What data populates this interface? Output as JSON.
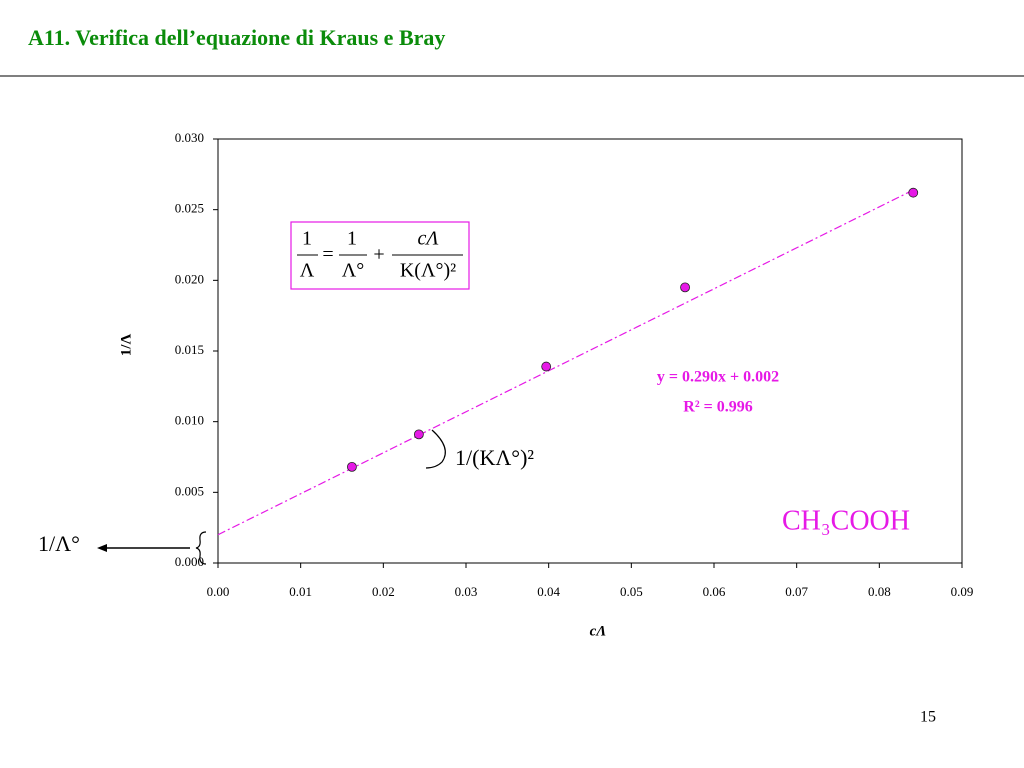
{
  "slide": {
    "title": "A11. Verifica dell’equazione di Kraus e Bray",
    "page_number": 15
  },
  "chart_data": {
    "type": "scatter",
    "x_label": "cΛ",
    "y_label": "1/Λ",
    "x": [
      0.0162,
      0.0243,
      0.0397,
      0.0565,
      0.0841
    ],
    "values": [
      0.0068,
      0.0091,
      0.0139,
      0.0195,
      0.0262
    ],
    "color": "#e619e6",
    "xlim": [
      0,
      0.09
    ],
    "ylim": [
      0,
      0.03
    ],
    "xticks": [
      {
        "value": 0,
        "label": "0.00"
      },
      {
        "value": 0.01,
        "label": "0.01"
      },
      {
        "value": 0.02,
        "label": "0.02"
      },
      {
        "value": 0.03,
        "label": "0.03"
      },
      {
        "value": 0.04,
        "label": "0.04"
      },
      {
        "value": 0.05,
        "label": "0.05"
      },
      {
        "value": 0.06,
        "label": "0.06"
      },
      {
        "value": 0.07,
        "label": "0.07"
      },
      {
        "value": 0.08,
        "label": "0.08"
      },
      {
        "value": 0.09,
        "label": "0.09"
      }
    ],
    "yticks": [
      {
        "value": 0,
        "label": "0.000"
      },
      {
        "value": 0.005,
        "label": "0.005"
      },
      {
        "value": 0.01,
        "label": "0.010"
      },
      {
        "value": 0.015,
        "label": "0.015"
      },
      {
        "value": 0.02,
        "label": "0.020"
      },
      {
        "value": 0.025,
        "label": "0.025"
      },
      {
        "value": 0.03,
        "label": "0.030"
      }
    ],
    "trendline": {
      "slope": 0.29,
      "intercept": 0.002,
      "equation": "y = 0.290x + 0.002",
      "r2": "R² = 0.996"
    },
    "formula": {
      "lhs_num": "1",
      "lhs_den": "Λ",
      "eq": "=",
      "t1_num": "1",
      "t1_den": "Λ°",
      "plus": "+",
      "t2_num": "cΛ",
      "t2_den": "K(Λ°)²"
    },
    "annotations": {
      "slope_term": "1/(KΛ°)²",
      "intercept_term": "1/Λ°",
      "compound": "CH₃COOH"
    }
  }
}
